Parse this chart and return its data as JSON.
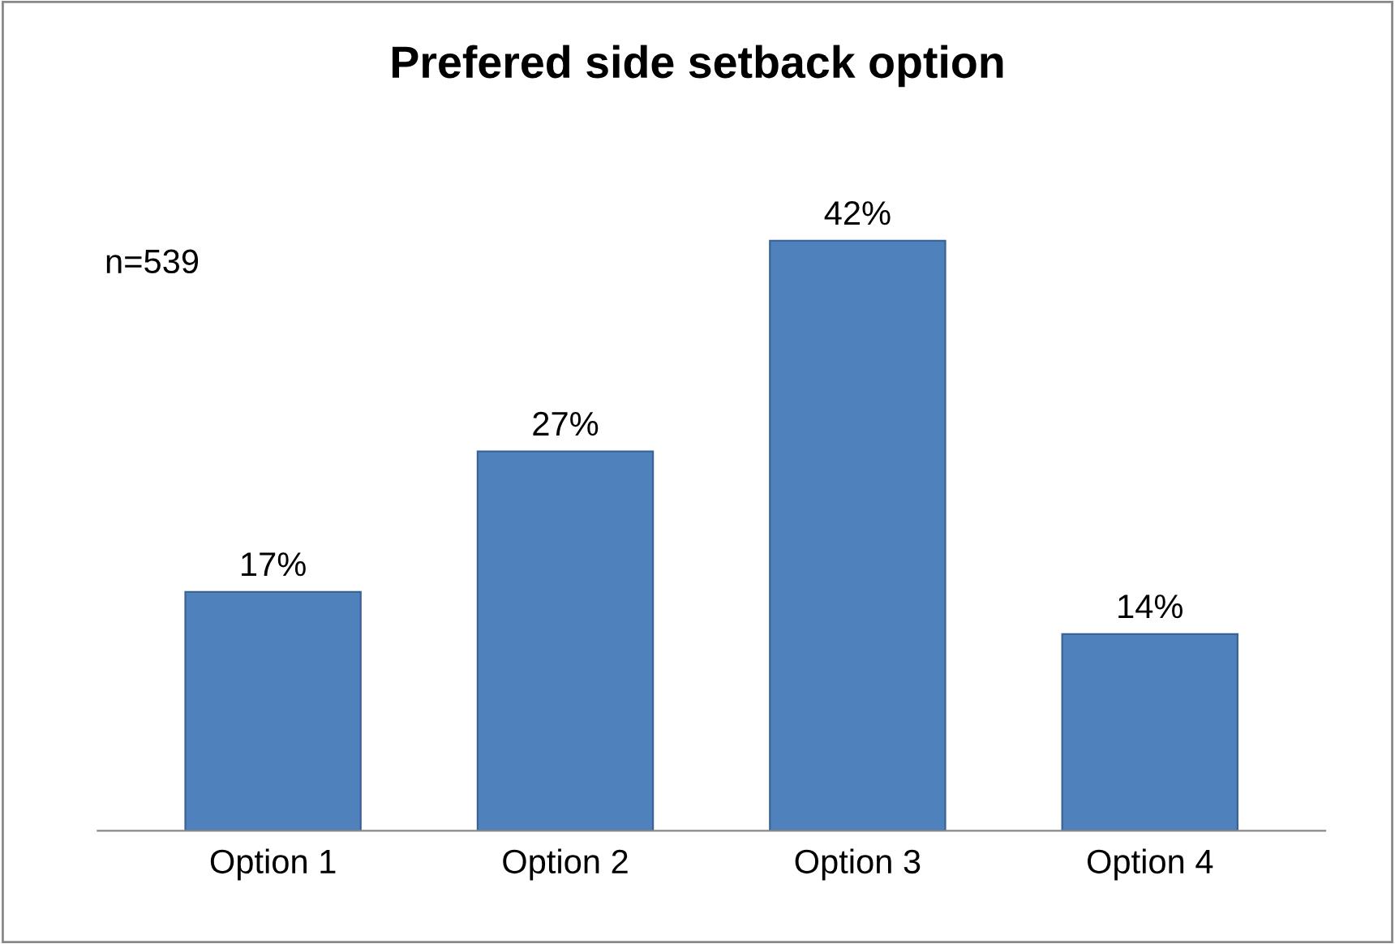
{
  "chart_data": {
    "type": "bar",
    "title": "Prefered side setback option",
    "categories": [
      "Option 1",
      "Option 2",
      "Option 3",
      "Option 4"
    ],
    "values": [
      17,
      27,
      42,
      14
    ],
    "value_labels": [
      "17%",
      "27%",
      "42%",
      "14%"
    ],
    "color": "#4f81bd",
    "annotations": [
      "n=539"
    ],
    "grid": false,
    "legend": false
  }
}
